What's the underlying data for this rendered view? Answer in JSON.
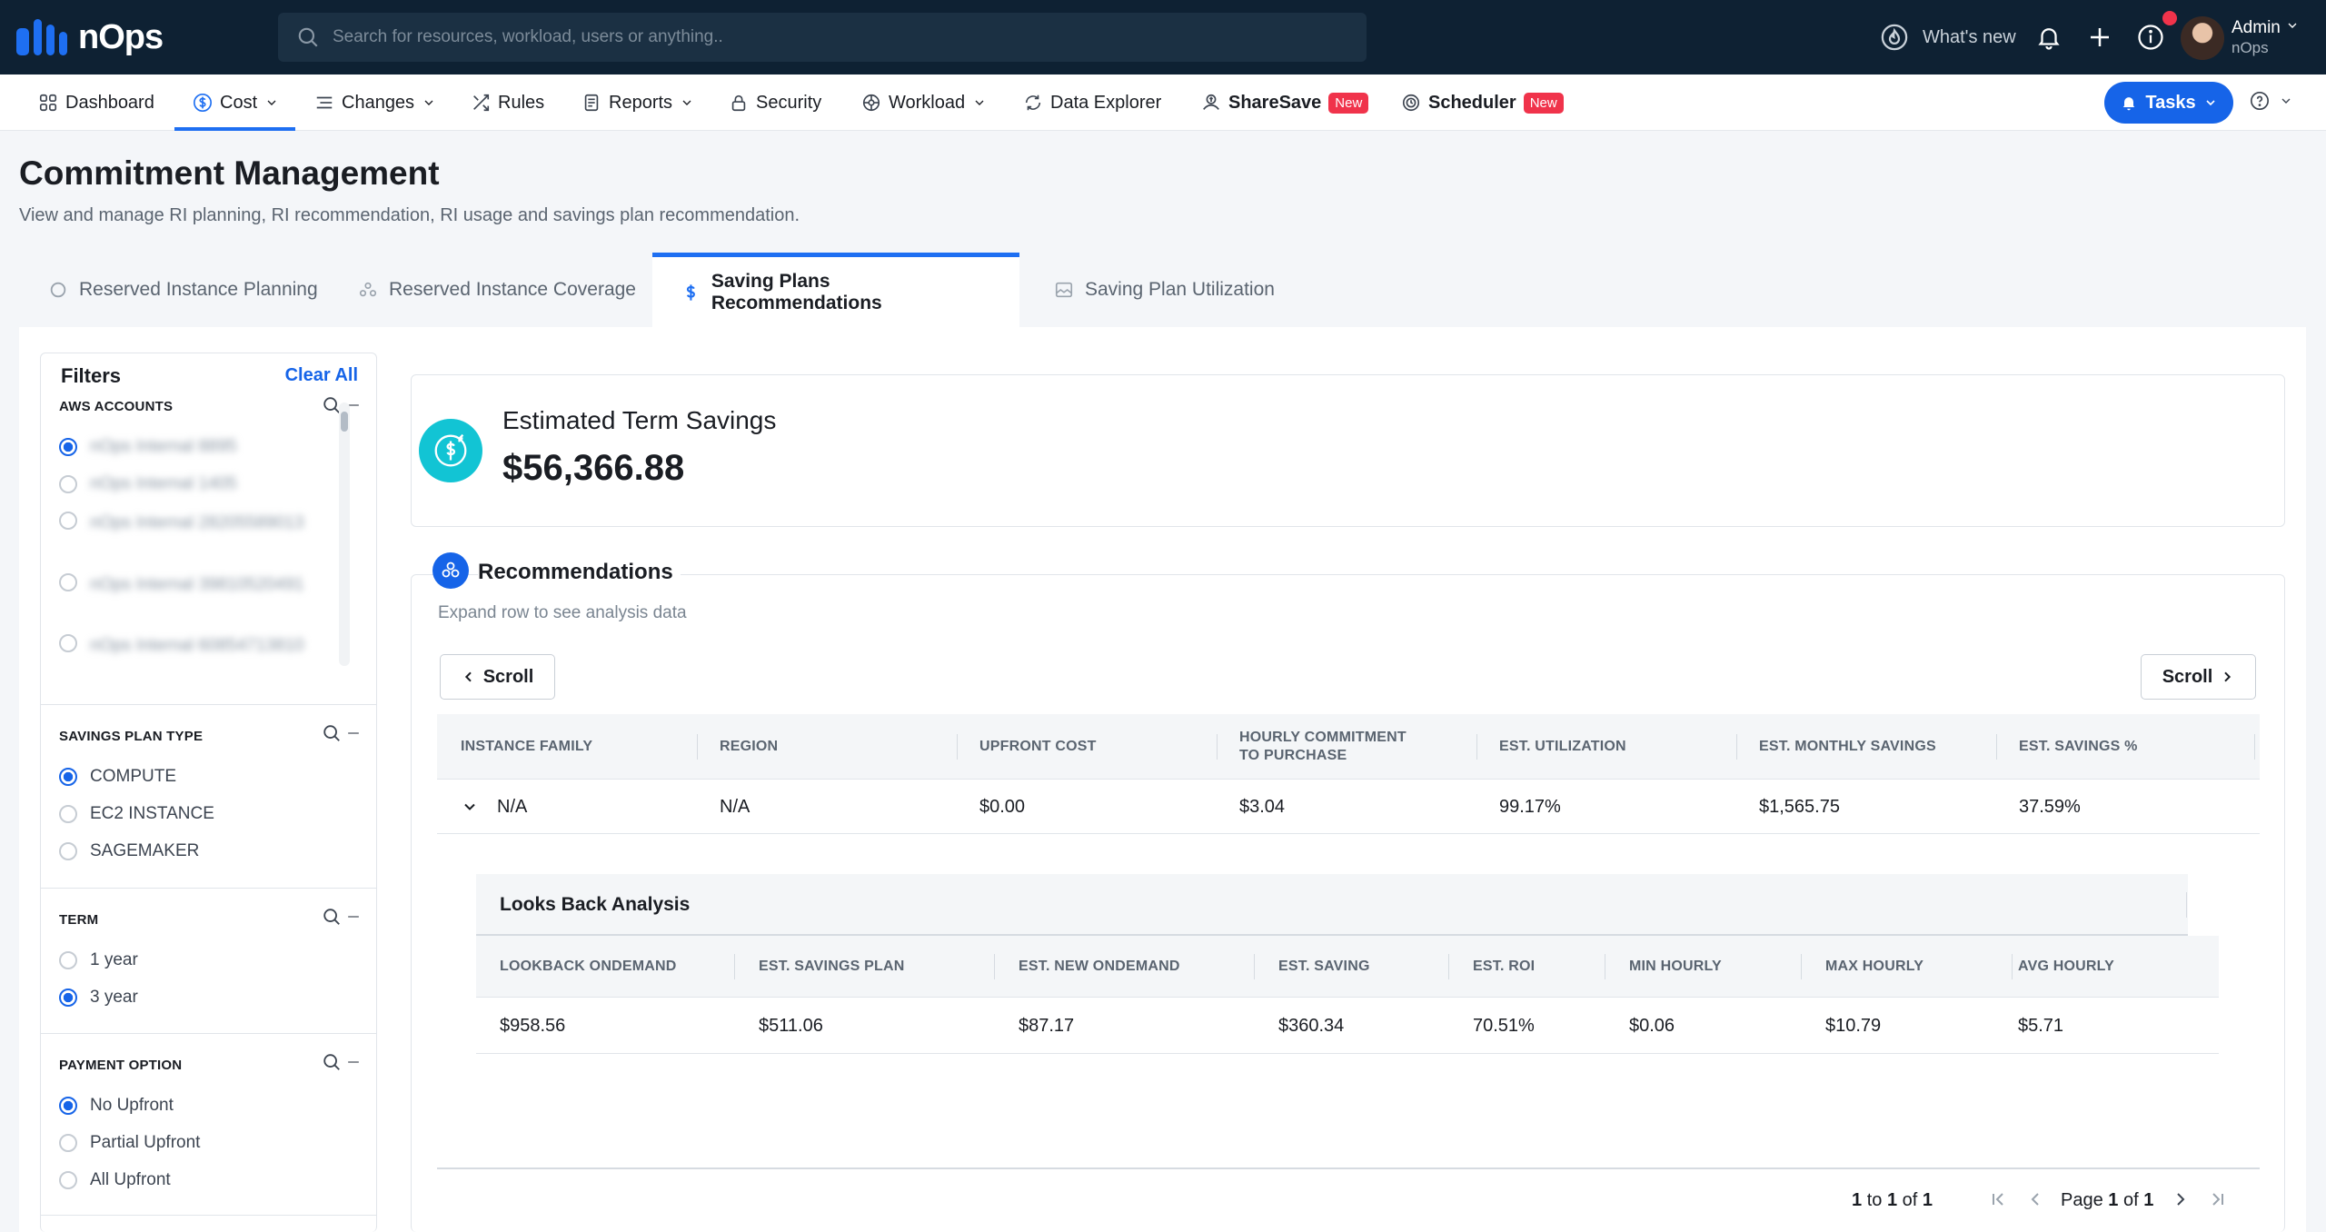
{
  "app": {
    "name": "nOps"
  },
  "search": {
    "placeholder": "Search for resources, workload, users or anything.."
  },
  "topbar": {
    "whats_new": "What's new",
    "user_name": "Admin",
    "user_org": "nOps"
  },
  "nav": {
    "items": [
      {
        "label": "Dashboard"
      },
      {
        "label": "Cost"
      },
      {
        "label": "Changes"
      },
      {
        "label": "Rules"
      },
      {
        "label": "Reports"
      },
      {
        "label": "Security"
      },
      {
        "label": "Workload"
      },
      {
        "label": "Data Explorer"
      },
      {
        "label": "ShareSave",
        "badge": "New"
      },
      {
        "label": "Scheduler",
        "badge": "New"
      }
    ],
    "tasks_label": "Tasks"
  },
  "page": {
    "title": "Commitment Management",
    "description": "View and manage RI planning, RI recommendation, RI usage and savings plan recommendation."
  },
  "tabs": [
    {
      "label": "Reserved Instance Planning"
    },
    {
      "label": "Reserved Instance Coverage"
    },
    {
      "label": "Saving Plans Recommendations"
    },
    {
      "label": "Saving Plan Utilization"
    }
  ],
  "filters": {
    "title": "Filters",
    "clear_all": "Clear All",
    "aws_accounts": {
      "title": "AWS ACCOUNTS",
      "options": [
        {
          "label": "nOps Internal 8895"
        },
        {
          "label": "nOps Internal 1405"
        },
        {
          "label": "nOps Internal 28205589013"
        },
        {
          "label": "nOps Internal 39810520491"
        },
        {
          "label": "nOps Internal 60854713810"
        }
      ]
    },
    "savings_plan_type": {
      "title": "SAVINGS PLAN TYPE",
      "options": [
        "COMPUTE",
        "EC2 INSTANCE",
        "SAGEMAKER"
      ]
    },
    "term": {
      "title": "TERM",
      "options": [
        "1 year",
        "3 year"
      ]
    },
    "payment_option": {
      "title": "PAYMENT OPTION",
      "options": [
        "No Upfront",
        "Partial Upfront",
        "All Upfront"
      ]
    }
  },
  "estimated": {
    "label": "Estimated Term Savings",
    "value": "$56,366.88"
  },
  "recommendations": {
    "title": "Recommendations",
    "subtitle": "Expand row to see analysis data",
    "scroll_left": "Scroll",
    "scroll_right": "Scroll",
    "columns": [
      "INSTANCE FAMILY",
      "REGION",
      "UPFRONT COST",
      "HOURLY COMMITMENT",
      "TO PURCHASE",
      "EST. UTILIZATION",
      "EST. MONTHLY SAVINGS",
      "EST. SAVINGS %"
    ],
    "row": {
      "instance_family": "N/A",
      "region": "N/A",
      "upfront_cost": "$0.00",
      "hourly_commitment": "$3.04",
      "est_utilization": "99.17%",
      "est_monthly_savings": "$1,565.75",
      "est_savings_pct": "37.59%"
    }
  },
  "lookback": {
    "title": "Looks Back Analysis",
    "columns": [
      "LOOKBACK ONDEMAND",
      "EST. SAVINGS PLAN",
      "EST. NEW ONDEMAND",
      "EST. SAVING",
      "EST. ROI",
      "MIN HOURLY",
      "MAX HOURLY",
      "AVG HOURLY"
    ],
    "row": [
      "$958.56",
      "$511.06",
      "$87.17",
      "$360.34",
      "70.51%",
      "$0.06",
      "$10.79",
      "$5.71"
    ]
  },
  "pagination": {
    "from": "1",
    "to_word": "to",
    "to": "1",
    "of_word": "of",
    "total": "1",
    "page_word": "Page",
    "page": "1",
    "pages": "1"
  }
}
